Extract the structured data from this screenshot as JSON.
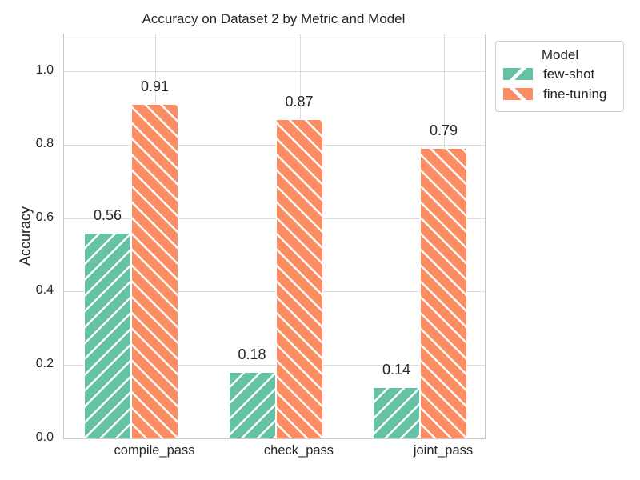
{
  "chart_data": {
    "type": "bar",
    "title": "Accuracy on Dataset 2 by Metric and Model",
    "xlabel": "",
    "ylabel": "Accuracy",
    "categories": [
      "compile_pass",
      "check_pass",
      "joint_pass"
    ],
    "series": [
      {
        "name": "few-shot",
        "values": [
          0.56,
          0.18,
          0.14
        ],
        "color": "#66c2a5",
        "hatch": "/"
      },
      {
        "name": "fine-tuning",
        "values": [
          0.91,
          0.87,
          0.79
        ],
        "color": "#fc8d62",
        "hatch": "\\"
      }
    ],
    "bar_value_labels": [
      [
        "0.56",
        "0.18",
        "0.14"
      ],
      [
        "0.91",
        "0.87",
        "0.79"
      ]
    ],
    "ylim": [
      0,
      1.1
    ],
    "yticks": [
      0.0,
      0.2,
      0.4,
      0.6,
      0.8,
      1.0
    ],
    "ytick_labels": [
      "0.0",
      "0.2",
      "0.4",
      "0.6",
      "0.8",
      "1.0"
    ],
    "grid": true,
    "legend": {
      "title": "Model",
      "entries": [
        "few-shot",
        "fine-tuning"
      ],
      "position": "upper right, outside plot"
    },
    "style": {
      "background": "#ffffff",
      "grid_color": "#dcdcdc",
      "axes_edge_color": "#c9c9c9",
      "text_color": "#262626",
      "hatch_color": "#ffffff"
    }
  }
}
